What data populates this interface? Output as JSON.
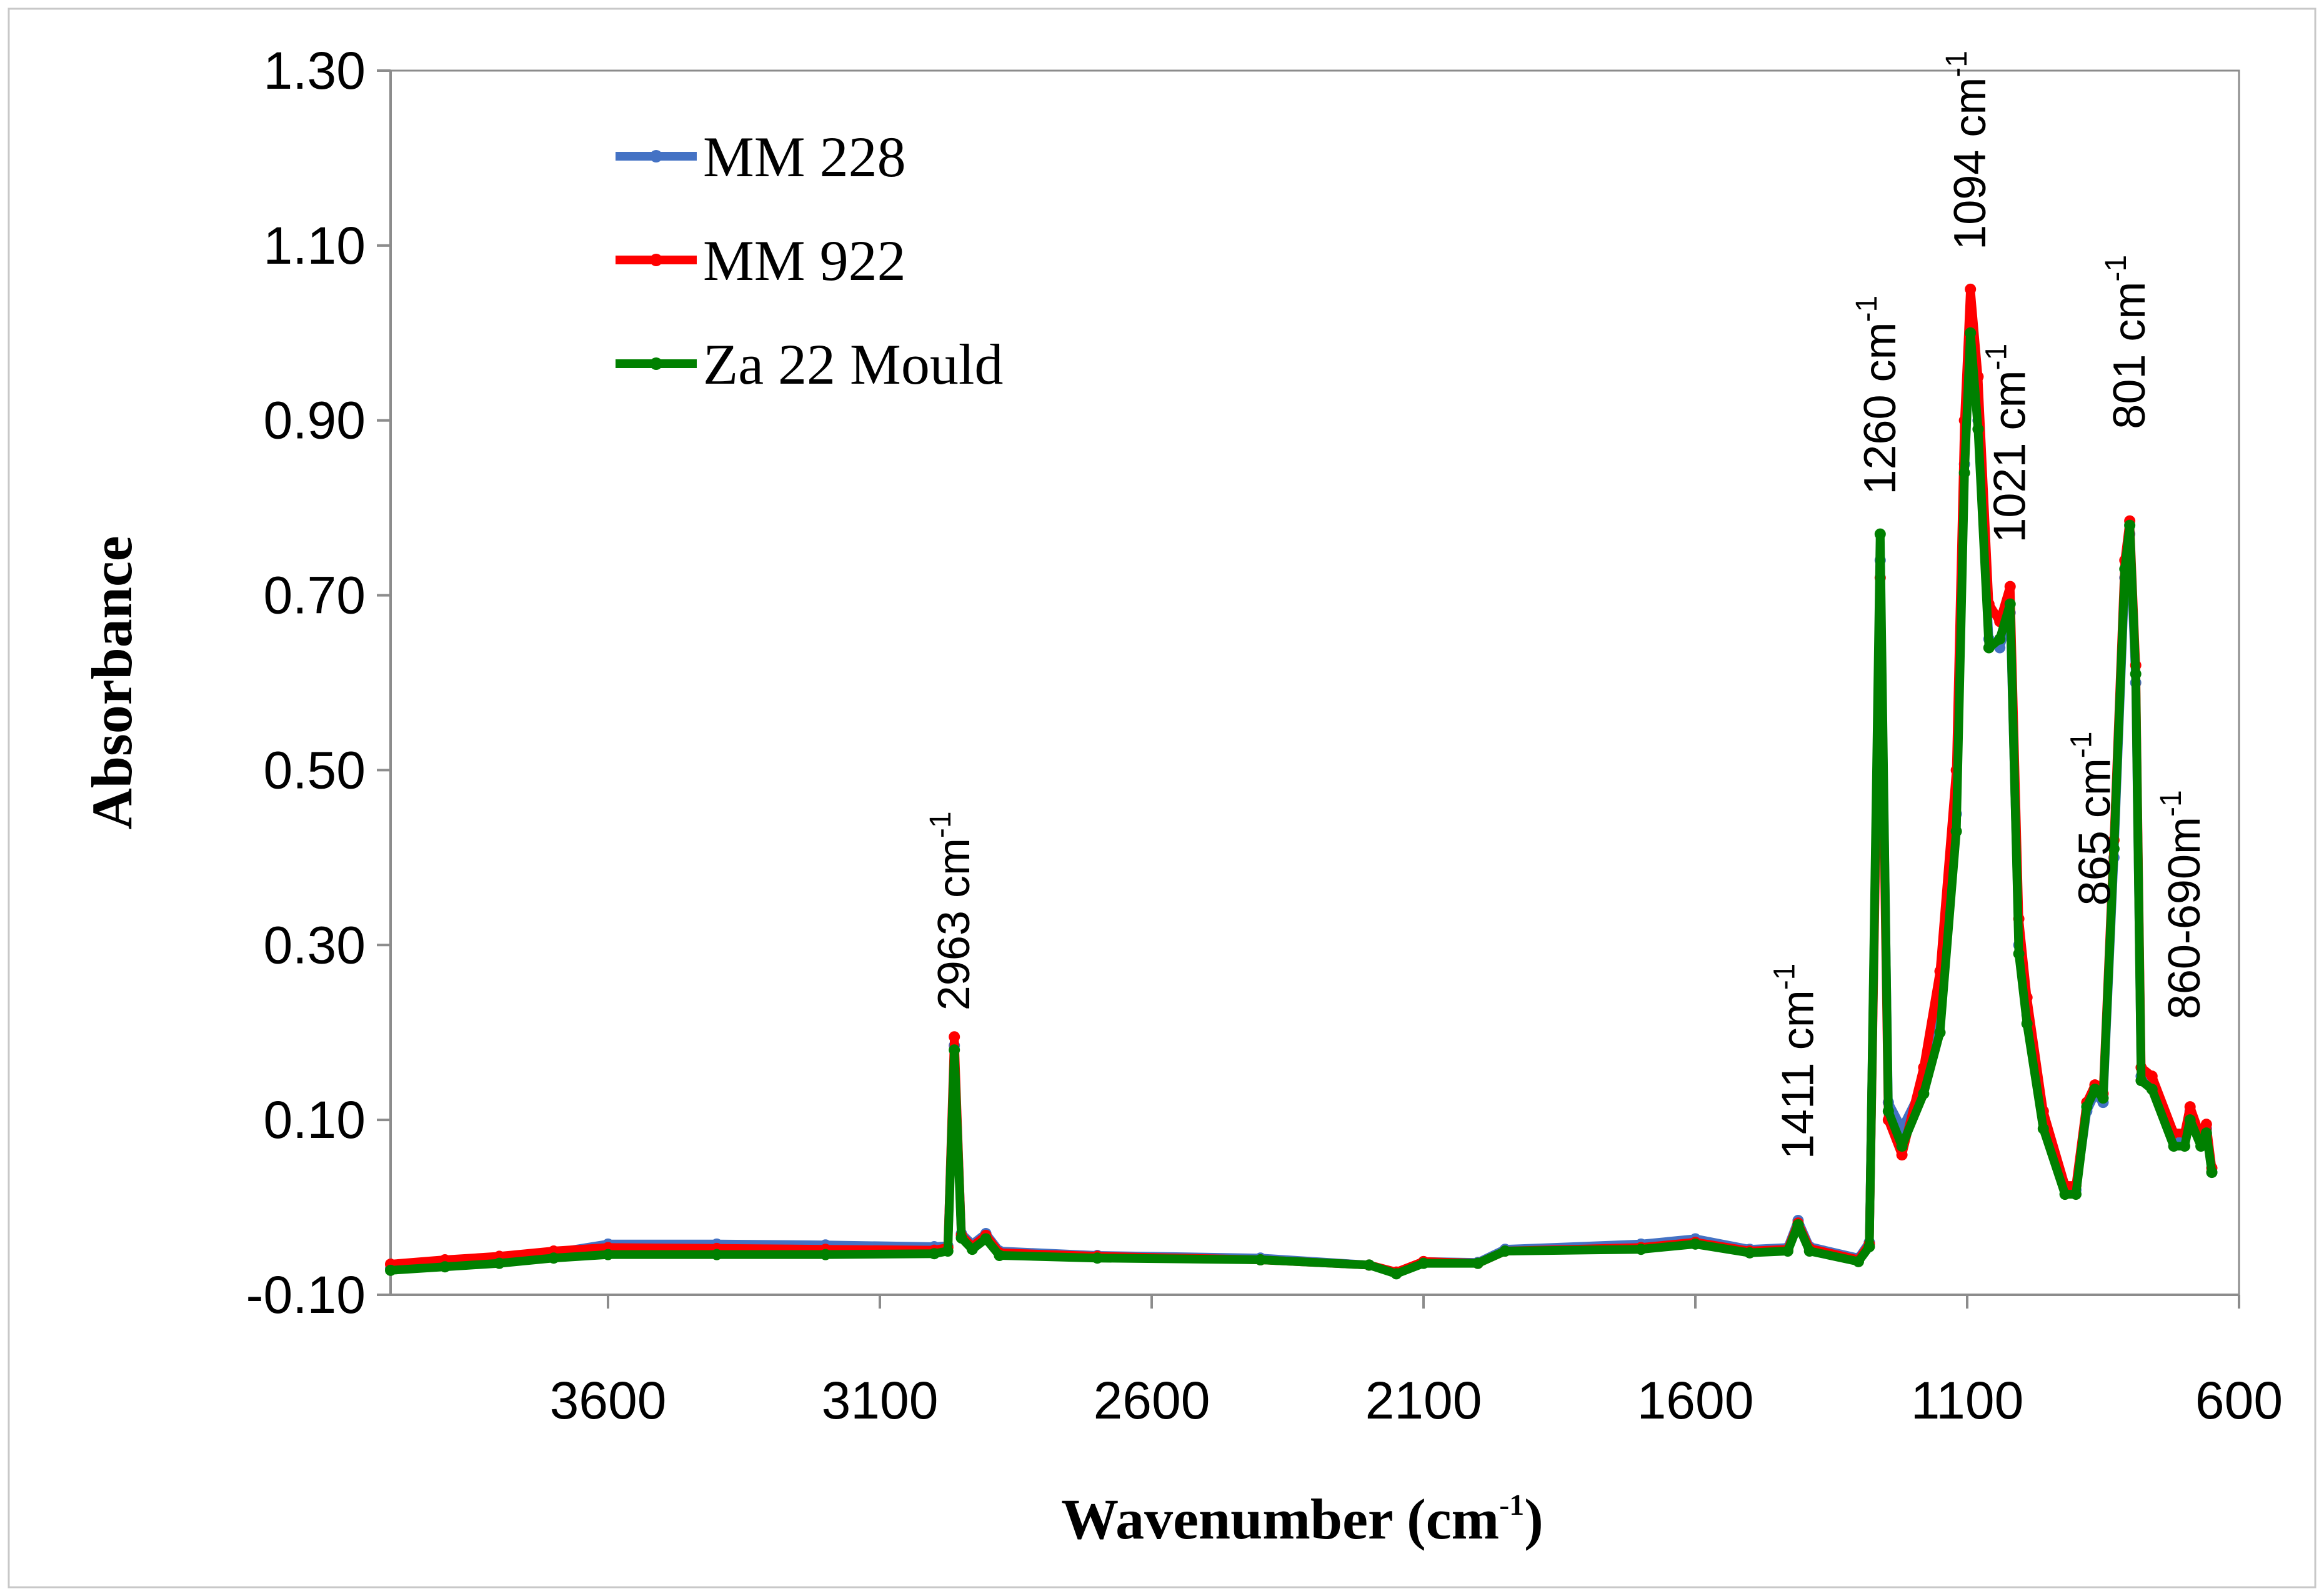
{
  "chart_data": {
    "type": "line",
    "title": "",
    "xlabel": "Wavenumber (cm",
    "xlabel_sup": "-1",
    "xlabel_close": ")",
    "ylabel": "Absorbance",
    "xlim": [
      4000,
      600
    ],
    "ylim": [
      -0.1,
      1.3
    ],
    "x_ticks": [
      3600,
      3100,
      2600,
      2100,
      1600,
      1100,
      600
    ],
    "y_ticks": [
      "-0.10",
      "0.10",
      "0.30",
      "0.50",
      "0.70",
      "0.90",
      "1.10",
      "1.30"
    ],
    "grid": false,
    "legend_position": "top-left",
    "series": [
      {
        "name": "MM 228",
        "color": "#4472C4",
        "points": [
          [
            4000,
            -0.07
          ],
          [
            3900,
            -0.065
          ],
          [
            3800,
            -0.06
          ],
          [
            3700,
            -0.052
          ],
          [
            3600,
            -0.042
          ],
          [
            3400,
            -0.042
          ],
          [
            3200,
            -0.043
          ],
          [
            3000,
            -0.045
          ],
          [
            2975,
            -0.044
          ],
          [
            2963,
            0.185
          ],
          [
            2950,
            -0.03
          ],
          [
            2930,
            -0.042
          ],
          [
            2905,
            -0.03
          ],
          [
            2880,
            -0.05
          ],
          [
            2700,
            -0.055
          ],
          [
            2400,
            -0.058
          ],
          [
            2200,
            -0.066
          ],
          [
            2150,
            -0.075
          ],
          [
            2100,
            -0.062
          ],
          [
            2000,
            -0.063
          ],
          [
            1950,
            -0.048
          ],
          [
            1700,
            -0.042
          ],
          [
            1600,
            -0.036
          ],
          [
            1500,
            -0.048
          ],
          [
            1430,
            -0.046
          ],
          [
            1411,
            -0.015
          ],
          [
            1390,
            -0.045
          ],
          [
            1300,
            -0.058
          ],
          [
            1280,
            -0.04
          ],
          [
            1260,
            0.74
          ],
          [
            1245,
            0.12
          ],
          [
            1220,
            0.09
          ],
          [
            1180,
            0.14
          ],
          [
            1150,
            0.22
          ],
          [
            1120,
            0.45
          ],
          [
            1105,
            0.85
          ],
          [
            1094,
            1.01
          ],
          [
            1080,
            0.9
          ],
          [
            1060,
            0.65
          ],
          [
            1040,
            0.64
          ],
          [
            1021,
            0.68
          ],
          [
            1005,
            0.3
          ],
          [
            990,
            0.22
          ],
          [
            960,
            0.1
          ],
          [
            920,
            0.02
          ],
          [
            900,
            0.02
          ],
          [
            880,
            0.11
          ],
          [
            865,
            0.13
          ],
          [
            850,
            0.12
          ],
          [
            830,
            0.4
          ],
          [
            810,
            0.72
          ],
          [
            801,
            0.77
          ],
          [
            790,
            0.6
          ],
          [
            780,
            0.15
          ],
          [
            760,
            0.14
          ],
          [
            720,
            0.08
          ],
          [
            700,
            0.08
          ],
          [
            690,
            0.11
          ],
          [
            670,
            0.075
          ],
          [
            660,
            0.09
          ],
          [
            650,
            0.04
          ]
        ]
      },
      {
        "name": "MM 922",
        "color": "#FF0000",
        "points": [
          [
            4000,
            -0.065
          ],
          [
            3900,
            -0.06
          ],
          [
            3800,
            -0.056
          ],
          [
            3700,
            -0.05
          ],
          [
            3600,
            -0.046
          ],
          [
            3400,
            -0.047
          ],
          [
            3200,
            -0.048
          ],
          [
            3000,
            -0.049
          ],
          [
            2975,
            -0.046
          ],
          [
            2963,
            0.195
          ],
          [
            2950,
            -0.032
          ],
          [
            2930,
            -0.045
          ],
          [
            2905,
            -0.032
          ],
          [
            2880,
            -0.052
          ],
          [
            2700,
            -0.056
          ],
          [
            2400,
            -0.06
          ],
          [
            2200,
            -0.066
          ],
          [
            2150,
            -0.074
          ],
          [
            2100,
            -0.062
          ],
          [
            2000,
            -0.064
          ],
          [
            1950,
            -0.05
          ],
          [
            1700,
            -0.046
          ],
          [
            1600,
            -0.04
          ],
          [
            1500,
            -0.05
          ],
          [
            1430,
            -0.048
          ],
          [
            1411,
            -0.018
          ],
          [
            1390,
            -0.047
          ],
          [
            1300,
            -0.06
          ],
          [
            1280,
            -0.042
          ],
          [
            1260,
            0.72
          ],
          [
            1245,
            0.1
          ],
          [
            1220,
            0.06
          ],
          [
            1180,
            0.16
          ],
          [
            1150,
            0.27
          ],
          [
            1120,
            0.5
          ],
          [
            1105,
            0.9
          ],
          [
            1094,
            1.05
          ],
          [
            1080,
            0.95
          ],
          [
            1060,
            0.69
          ],
          [
            1040,
            0.67
          ],
          [
            1021,
            0.71
          ],
          [
            1005,
            0.33
          ],
          [
            990,
            0.24
          ],
          [
            960,
            0.11
          ],
          [
            920,
            0.025
          ],
          [
            900,
            0.025
          ],
          [
            880,
            0.12
          ],
          [
            865,
            0.14
          ],
          [
            850,
            0.13
          ],
          [
            830,
            0.42
          ],
          [
            810,
            0.74
          ],
          [
            801,
            0.785
          ],
          [
            790,
            0.62
          ],
          [
            780,
            0.16
          ],
          [
            760,
            0.15
          ],
          [
            720,
            0.085
          ],
          [
            700,
            0.085
          ],
          [
            690,
            0.115
          ],
          [
            670,
            0.08
          ],
          [
            660,
            0.095
          ],
          [
            650,
            0.045
          ]
        ]
      },
      {
        "name": "Za 22 Mould",
        "color": "#008000",
        "points": [
          [
            4000,
            -0.072
          ],
          [
            3900,
            -0.068
          ],
          [
            3800,
            -0.064
          ],
          [
            3700,
            -0.058
          ],
          [
            3600,
            -0.054
          ],
          [
            3400,
            -0.054
          ],
          [
            3200,
            -0.054
          ],
          [
            3000,
            -0.053
          ],
          [
            2975,
            -0.05
          ],
          [
            2963,
            0.18
          ],
          [
            2950,
            -0.035
          ],
          [
            2930,
            -0.048
          ],
          [
            2905,
            -0.036
          ],
          [
            2880,
            -0.055
          ],
          [
            2700,
            -0.058
          ],
          [
            2400,
            -0.06
          ],
          [
            2200,
            -0.066
          ],
          [
            2150,
            -0.076
          ],
          [
            2100,
            -0.064
          ],
          [
            2000,
            -0.064
          ],
          [
            1950,
            -0.05
          ],
          [
            1700,
            -0.048
          ],
          [
            1600,
            -0.042
          ],
          [
            1500,
            -0.052
          ],
          [
            1430,
            -0.05
          ],
          [
            1411,
            -0.02
          ],
          [
            1390,
            -0.05
          ],
          [
            1300,
            -0.062
          ],
          [
            1280,
            -0.045
          ],
          [
            1260,
            0.77
          ],
          [
            1245,
            0.11
          ],
          [
            1220,
            0.07
          ],
          [
            1180,
            0.13
          ],
          [
            1150,
            0.2
          ],
          [
            1120,
            0.43
          ],
          [
            1105,
            0.84
          ],
          [
            1094,
            1.0
          ],
          [
            1080,
            0.89
          ],
          [
            1060,
            0.64
          ],
          [
            1040,
            0.65
          ],
          [
            1021,
            0.69
          ],
          [
            1005,
            0.29
          ],
          [
            990,
            0.21
          ],
          [
            960,
            0.09
          ],
          [
            920,
            0.015
          ],
          [
            900,
            0.015
          ],
          [
            880,
            0.115
          ],
          [
            865,
            0.135
          ],
          [
            850,
            0.125
          ],
          [
            830,
            0.41
          ],
          [
            810,
            0.73
          ],
          [
            801,
            0.78
          ],
          [
            790,
            0.61
          ],
          [
            780,
            0.145
          ],
          [
            760,
            0.135
          ],
          [
            720,
            0.07
          ],
          [
            700,
            0.07
          ],
          [
            690,
            0.1
          ],
          [
            670,
            0.07
          ],
          [
            660,
            0.085
          ],
          [
            650,
            0.04
          ]
        ]
      }
    ],
    "annotations": [
      {
        "text": "2963 cm",
        "sup": "-1",
        "x": 2963,
        "y": 0.225
      },
      {
        "text": "1411 cm",
        "sup": "-1",
        "x": 1411,
        "y": 0.055
      },
      {
        "text": "1260 cm",
        "sup": "-1",
        "x": 1260,
        "y": 0.815
      },
      {
        "text": "1094 cm",
        "sup": "-1",
        "x": 1094,
        "y": 1.095
      },
      {
        "text": "1021 cm",
        "sup": "-1",
        "x": 1021,
        "y": 0.76
      },
      {
        "text": "865 cm",
        "sup": "-1",
        "x": 865,
        "y": 0.345
      },
      {
        "text": "801 cm",
        "sup": "-1",
        "x": 801,
        "y": 0.89
      },
      {
        "text": "860-690m",
        "sup": "-1",
        "x": 700,
        "y": 0.215
      }
    ]
  }
}
